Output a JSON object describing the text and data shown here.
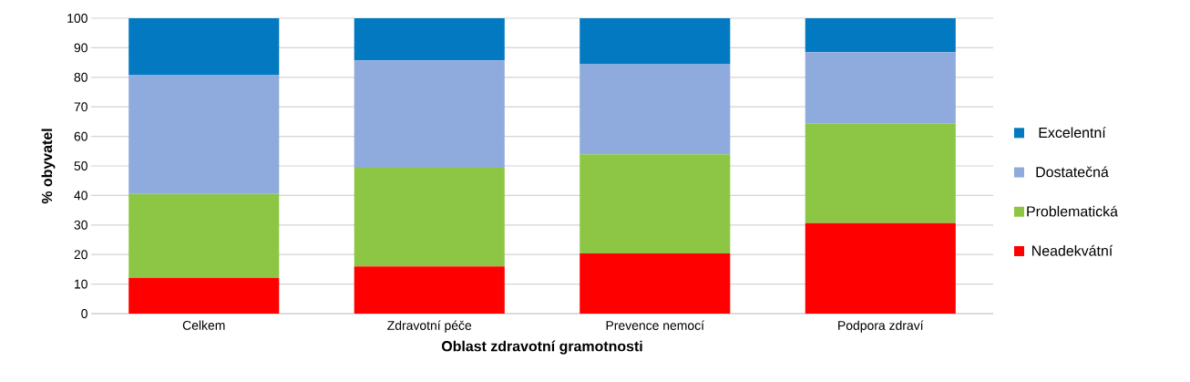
{
  "chart_data": {
    "type": "bar",
    "stacked": true,
    "xlabel": "Oblast zdravotní gramotnosti",
    "ylabel": "% obyvatel",
    "categories": [
      "Celkem",
      "Zdravotní péče",
      "Prevence nemocí",
      "Podpora zdraví"
    ],
    "series": [
      {
        "name": "Neadekvátní",
        "color": "#ff0000",
        "values": [
          12.1,
          16.0,
          20.4,
          30.6
        ]
      },
      {
        "name": "Problematická",
        "color": "#8dc645",
        "values": [
          28.4,
          33.4,
          33.5,
          33.7
        ]
      },
      {
        "name": "Dostatečná",
        "color": "#8faadc",
        "values": [
          40.4,
          36.3,
          30.5,
          24.2
        ]
      },
      {
        "name": "Excelentní",
        "color": "#0279c0",
        "values": [
          19.1,
          14.3,
          15.6,
          11.5
        ]
      }
    ],
    "ylim": [
      0,
      100
    ],
    "yticks": [
      0,
      10,
      20,
      30,
      40,
      50,
      60,
      70,
      80,
      90,
      100
    ],
    "grid": "y",
    "legend": "right"
  }
}
